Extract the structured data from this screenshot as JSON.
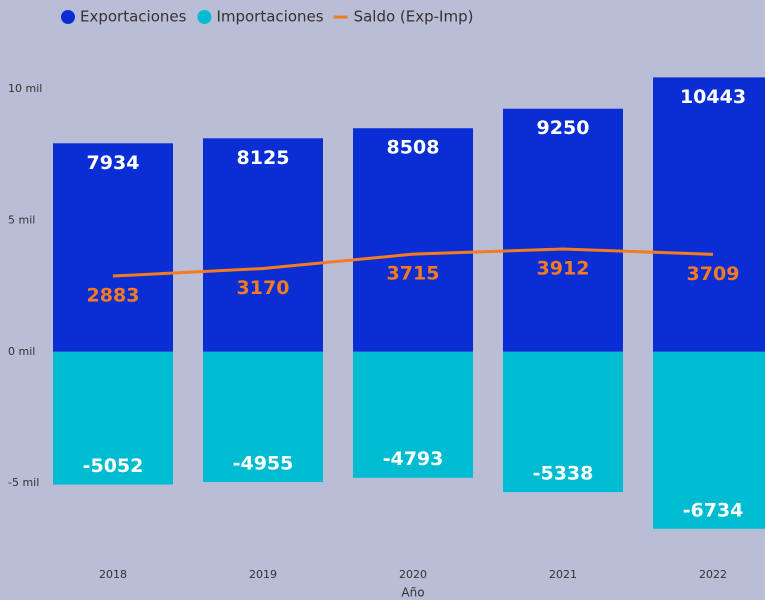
{
  "chart_data": {
    "type": "bar",
    "x_label": "Año",
    "categories": [
      "2018",
      "2019",
      "2020",
      "2021",
      "2022"
    ],
    "series": [
      {
        "name": "Exportaciones",
        "color": "#0a2ed4",
        "values": [
          7934,
          8125,
          8508,
          9250,
          10443
        ]
      },
      {
        "name": "Importaciones",
        "color": "#00bcd2",
        "values": [
          -5052,
          -4955,
          -4793,
          -5338,
          -6734
        ]
      },
      {
        "name": "Saldo (Exp-Imp)",
        "color": "#f47b20",
        "type": "line",
        "values": [
          2883,
          3170,
          3715,
          3912,
          3709
        ]
      }
    ],
    "ylim": [
      -7200,
      10800
    ],
    "yticks": [
      {
        "value": -5000,
        "label": "-5 mil"
      },
      {
        "value": 0,
        "label": "0 mil"
      },
      {
        "value": 5000,
        "label": "5 mil"
      },
      {
        "value": 10000,
        "label": "10 mil"
      }
    ],
    "legend": "top"
  }
}
